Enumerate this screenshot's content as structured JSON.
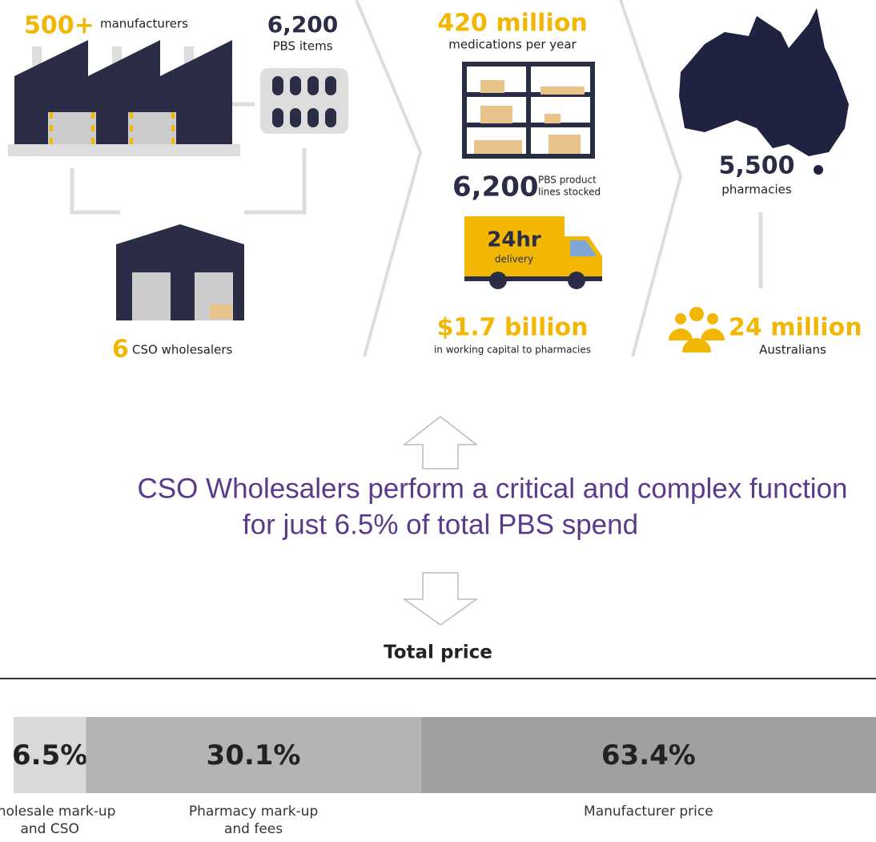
{
  "manufacturers": {
    "number": "500+",
    "label": "manufacturers"
  },
  "pbs_items": {
    "number": "6,200",
    "label": "PBS items"
  },
  "wholesalers": {
    "number": "6",
    "label": "CSO wholesalers"
  },
  "medications": {
    "number": "420 million",
    "label": "medications per year"
  },
  "product_lines": {
    "number": "6,200",
    "label_lines": [
      "PBS product",
      "lines stocked"
    ]
  },
  "delivery": {
    "number": "24hr",
    "label": "delivery"
  },
  "capital": {
    "number": "$1.7 billion",
    "label": "in working capital to pharmacies"
  },
  "pharmacies": {
    "number": "5,500",
    "label": "pharmacies"
  },
  "population": {
    "number": "24 million",
    "label": "Australians"
  },
  "headline": [
    "CSO Wholesalers perform a critical and complex function",
    "for just 6.5% of total PBS spend"
  ],
  "chart_data": {
    "type": "stacked_bar",
    "title": "Total price",
    "categories": [
      "Wholesale mark-up and CSO",
      "Pharmacy mark-up and fees",
      "Manufacturer price"
    ],
    "values": [
      6.5,
      30.1,
      63.4
    ],
    "value_labels": [
      "6.5%",
      "30.1%",
      "63.4%"
    ],
    "colors": [
      "#d9d9d9",
      "#b4b4b4",
      "#a0a0a0"
    ]
  }
}
